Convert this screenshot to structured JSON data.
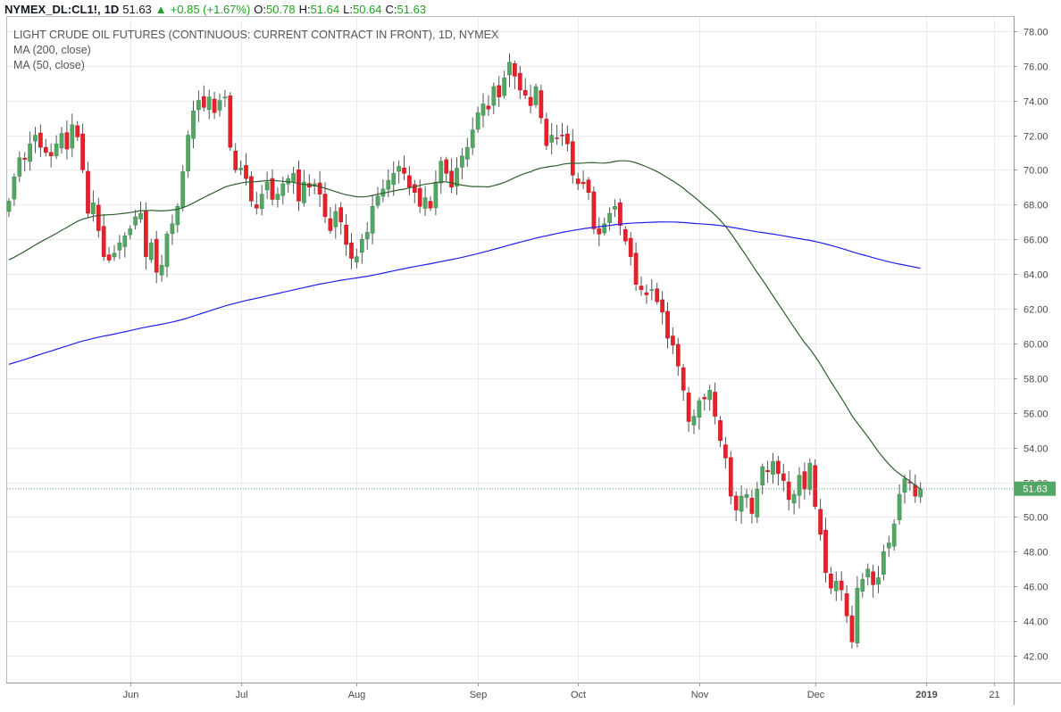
{
  "header": {
    "symbol": "NYMEX_DL:CL1!,",
    "interval": "1D",
    "last": "51.63",
    "change_arrow": "▲",
    "change": "+0.85 (+1.67%)",
    "o_label": "O:",
    "o_value": "50.78",
    "h_label": "H:",
    "h_value": "51.64",
    "l_label": "L:",
    "l_value": "50.64",
    "c_label": "C:",
    "c_value": "51.63"
  },
  "legend": {
    "title": "LIGHT CRUDE OIL FUTURES (CONTINUOUS: CURRENT CONTRACT IN FRONT), 1D, NYMEX",
    "ma200": "MA (200, close)",
    "ma50": "MA (50, close)"
  },
  "price_label": "51.63",
  "colors": {
    "up": "#53a663",
    "down": "#e8202a",
    "wick": "#555555",
    "ma200": "#2020e8",
    "ma50": "#2e5e2e",
    "last_bg": "#53a663"
  },
  "chart_data": {
    "type": "candlestick",
    "title": "LIGHT CRUDE OIL FUTURES (CONTINUOUS: CURRENT CONTRACT IN FRONT), 1D, NYMEX",
    "ylim": [
      41,
      79
    ],
    "y_ticks": [
      "42.00",
      "44.00",
      "46.00",
      "48.00",
      "50.00",
      "52.00",
      "54.00",
      "56.00",
      "58.00",
      "60.00",
      "62.00",
      "64.00",
      "66.00",
      "68.00",
      "70.00",
      "72.00",
      "74.00",
      "76.00",
      "78.00"
    ],
    "x_ticks": [
      {
        "label": "Jun",
        "index": 23
      },
      {
        "label": "Jul",
        "index": 44
      },
      {
        "label": "Aug",
        "index": 66
      },
      {
        "label": "Sep",
        "index": 89
      },
      {
        "label": "Oct",
        "index": 108
      },
      {
        "label": "Nov",
        "index": 131
      },
      {
        "label": "Dec",
        "index": 153
      },
      {
        "label": "2019",
        "index": 174
      },
      {
        "label": "21",
        "index": 187
      }
    ],
    "last_price": 51.63,
    "close": [
      68.2,
      69.6,
      70.7,
      70.6,
      71.5,
      72.0,
      71.3,
      71.0,
      70.8,
      71.5,
      72.1,
      71.2,
      72.6,
      71.9,
      70.0,
      67.5,
      68.1,
      66.5,
      65.0,
      64.8,
      65.2,
      65.8,
      66.2,
      66.6,
      67.3,
      67.5,
      65.0,
      65.8,
      64.1,
      64.5,
      66.3,
      66.9,
      67.9,
      69.9,
      72.0,
      73.4,
      74.0,
      73.6,
      74.2,
      73.3,
      74.0,
      74.2,
      71.3,
      70.0,
      70.1,
      69.5,
      68.2,
      67.8,
      68.6,
      69.3,
      68.3,
      68.6,
      69.2,
      69.5,
      69.8,
      68.2,
      69.3,
      69.0,
      69.2,
      68.6,
      67.3,
      66.5,
      67.6,
      67.0,
      65.7,
      64.9,
      65.0,
      66.0,
      66.4,
      67.9,
      68.5,
      68.9,
      69.4,
      69.8,
      70.2,
      69.8,
      69.0,
      68.7,
      67.9,
      68.4,
      67.8,
      69.3,
      70.5,
      69.8,
      69.0,
      70.1,
      70.8,
      71.3,
      72.3,
      73.3,
      73.8,
      73.5,
      74.8,
      74.2,
      75.3,
      76.2,
      75.4,
      74.6,
      74.3,
      73.7,
      74.8,
      73.0,
      71.4,
      72.0,
      71.8,
      72.0,
      71.5,
      69.7,
      69.2,
      69.2,
      68.7,
      66.6,
      66.3,
      66.9,
      67.5,
      67.9,
      66.8,
      65.9,
      65.0,
      63.4,
      63.1,
      62.8,
      63.1,
      62.4,
      61.8,
      60.3,
      59.9,
      58.7,
      57.3,
      55.5,
      55.8,
      56.7,
      56.8,
      57.3,
      55.8,
      54.4,
      53.4,
      51.2,
      50.4,
      51.2,
      51.3,
      50.2,
      51.6,
      52.9,
      52.6,
      53.2,
      52.5,
      52.1,
      51.0,
      51.3,
      52.4,
      51.6,
      53.1,
      50.6,
      49.0,
      46.8,
      45.9,
      46.3,
      45.8,
      44.3,
      42.8,
      45.9,
      46.4,
      47.0,
      46.1,
      46.5,
      48.0,
      48.5,
      49.6,
      51.3,
      52.2,
      52.0,
      51.2,
      51.6
    ]
  }
}
